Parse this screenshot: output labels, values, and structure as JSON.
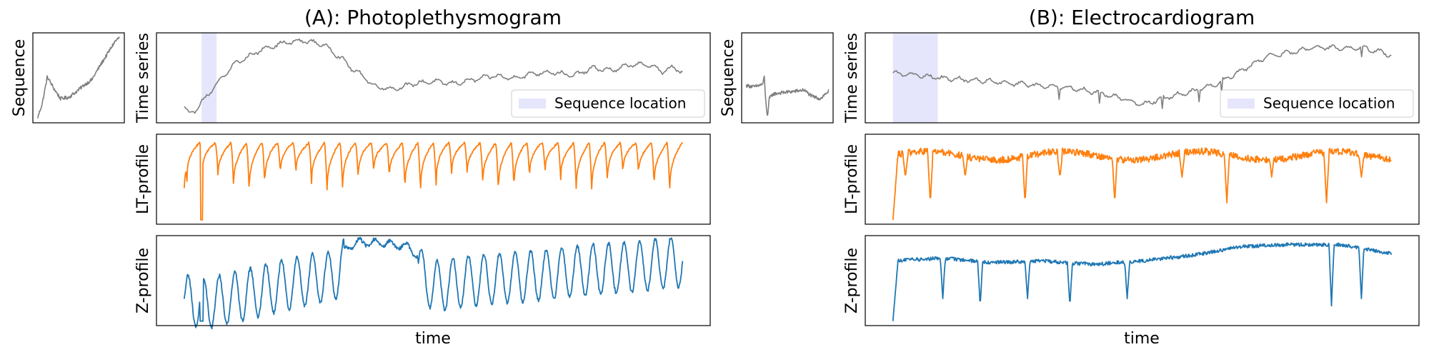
{
  "chart_data": [
    {
      "type": "line",
      "panel": "A",
      "title": "(A): Photoplethysmogram",
      "xlabel": "time",
      "colors": {
        "series": "#7f7f7f",
        "lt": "#ff7f0e",
        "z": "#1f77b4",
        "span": "#e5e5fb"
      },
      "subplots": {
        "sequence": {
          "ylabel": "Sequence",
          "x": [
            0,
            0.06,
            0.12,
            0.2,
            0.28,
            0.38,
            0.48,
            0.56,
            0.66,
            0.76,
            0.86,
            0.94,
            1.0
          ],
          "y": [
            0.0,
            0.35,
            0.95,
            0.68,
            0.45,
            0.48,
            0.62,
            0.75,
            0.88,
            1.2,
            1.5,
            1.75,
            1.85
          ]
        },
        "time_series": {
          "ylabel": "Time series",
          "legend": "Sequence location",
          "legend_loc": "lower right",
          "highlight": [
            0.035,
            0.065
          ],
          "x": [
            0,
            0.01,
            0.02,
            0.04,
            0.06,
            0.08,
            0.1,
            0.13,
            0.16,
            0.2,
            0.24,
            0.28,
            0.3,
            0.32,
            0.34,
            0.36,
            0.38,
            0.42,
            0.46,
            0.5,
            0.54,
            0.58,
            0.62,
            0.66,
            0.7,
            0.74,
            0.78,
            0.82,
            0.86,
            0.9,
            0.94,
            0.96,
            0.98,
            1.0
          ],
          "y": [
            0.15,
            0.05,
            0.1,
            0.25,
            0.4,
            0.55,
            0.7,
            0.8,
            0.9,
            0.97,
            1.0,
            0.95,
            0.85,
            0.75,
            0.62,
            0.55,
            0.42,
            0.38,
            0.45,
            0.48,
            0.45,
            0.5,
            0.55,
            0.52,
            0.58,
            0.6,
            0.55,
            0.65,
            0.62,
            0.7,
            0.68,
            0.6,
            0.66,
            0.6
          ]
        },
        "lt_profile": {
          "ylabel": "LT-profile",
          "cycles": 32,
          "peak": 0.95,
          "trough_range": [
            0.35,
            0.6
          ],
          "start": 0.42,
          "min_point": {
            "x": 0.035,
            "y": 0.05
          }
        },
        "z_profile": {
          "ylabel": "Z-profile",
          "x": [
            0,
            0.05,
            0.1,
            0.15,
            0.2,
            0.25,
            0.3,
            0.33,
            0.35,
            0.4,
            0.45,
            0.48,
            0.5,
            0.55,
            0.6,
            0.65,
            0.7,
            0.75,
            0.8,
            0.85,
            0.9,
            0.95,
            1.0
          ],
          "y": [
            0.45,
            0.42,
            0.48,
            0.55,
            0.62,
            0.68,
            0.72,
            0.9,
            0.95,
            0.94,
            0.9,
            0.72,
            0.6,
            0.65,
            0.68,
            0.7,
            0.72,
            0.75,
            0.78,
            0.8,
            0.82,
            0.85,
            0.88
          ],
          "oscillation": 0.28,
          "min_point": {
            "x": 0.035,
            "y": 0.05
          }
        }
      }
    },
    {
      "type": "line",
      "panel": "B",
      "title": "(B): Electrocardiogram",
      "xlabel": "time",
      "colors": {
        "series": "#7f7f7f",
        "lt": "#ff7f0e",
        "z": "#1f77b4",
        "span": "#e5e5fb"
      },
      "subplots": {
        "sequence": {
          "ylabel": "Sequence",
          "x": [
            0,
            0.1,
            0.2,
            0.22,
            0.24,
            0.26,
            0.28,
            0.32,
            0.4,
            0.5,
            0.6,
            0.7,
            0.8,
            0.9,
            1.0
          ],
          "y": [
            0.75,
            0.72,
            0.78,
            0.95,
            0.3,
            0.05,
            0.45,
            0.55,
            0.58,
            0.6,
            0.62,
            0.65,
            0.5,
            0.45,
            0.62
          ]
        },
        "time_series": {
          "ylabel": "Time series",
          "legend": "Sequence location",
          "legend_loc": "lower right",
          "highlight": [
            0.0,
            0.09
          ],
          "x": [
            0,
            0.05,
            0.1,
            0.15,
            0.2,
            0.25,
            0.3,
            0.35,
            0.4,
            0.45,
            0.5,
            0.55,
            0.6,
            0.65,
            0.7,
            0.75,
            0.8,
            0.85,
            0.9,
            0.95,
            1.0
          ],
          "y": [
            0.58,
            0.56,
            0.52,
            0.5,
            0.48,
            0.45,
            0.42,
            0.4,
            0.35,
            0.28,
            0.18,
            0.28,
            0.35,
            0.45,
            0.62,
            0.8,
            0.85,
            0.92,
            0.9,
            0.9,
            0.82
          ]
        },
        "lt_profile": {
          "ylabel": "LT-profile",
          "base": 0.8,
          "dips": [
            0.025,
            0.075,
            0.145,
            0.265,
            0.335,
            0.445,
            0.58,
            0.67,
            0.76,
            0.87,
            0.94
          ],
          "dip_depth": [
            0.55,
            0.25
          ],
          "min_point": {
            "x": 0.0,
            "y": 0.05
          }
        },
        "z_profile": {
          "ylabel": "Z-profile",
          "x": [
            0,
            0.1,
            0.2,
            0.3,
            0.4,
            0.5,
            0.6,
            0.7,
            0.8,
            0.9,
            1.0
          ],
          "y": [
            0.72,
            0.75,
            0.7,
            0.72,
            0.68,
            0.72,
            0.78,
            0.88,
            0.9,
            0.9,
            0.8
          ],
          "dips": [
            0.1,
            0.175,
            0.27,
            0.355,
            0.47,
            0.88,
            0.94
          ],
          "dip_depth": [
            0.3,
            0.22
          ],
          "min_point": {
            "x": 0.0,
            "y": 0.05
          }
        }
      }
    }
  ]
}
